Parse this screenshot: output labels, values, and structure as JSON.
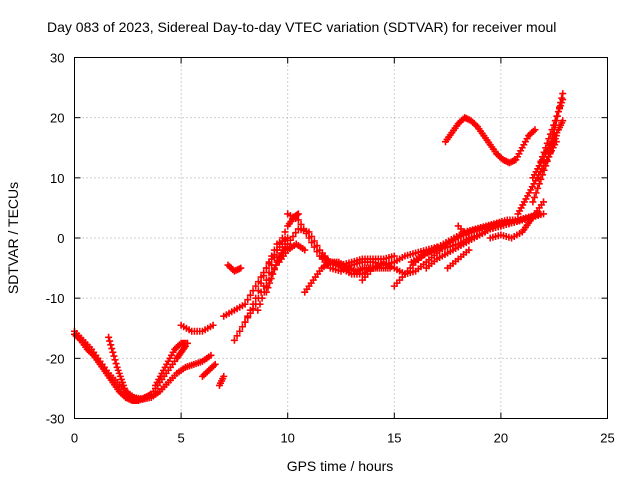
{
  "chart_data": {
    "type": "scatter",
    "title": "Day 083 of 2023, Sidereal Day-to-day VTEC variation (SDTVAR) for receiver moul",
    "xlabel": "GPS time / hours",
    "ylabel": "SDTVAR / TECUs",
    "xlim": [
      0,
      25
    ],
    "ylim": [
      -30,
      30
    ],
    "xticks": [
      0,
      5,
      10,
      15,
      20,
      25
    ],
    "yticks": [
      -30,
      -20,
      -10,
      0,
      10,
      20,
      30
    ],
    "xtick_labels": [
      "0",
      "5",
      "10",
      "15",
      "20",
      "25"
    ],
    "ytick_labels": [
      "-30",
      "-20",
      "-10",
      "0",
      "10",
      "20",
      "30"
    ],
    "grid": true,
    "marker": "+",
    "color": "#ff0000",
    "series": [
      {
        "name": "arc-1",
        "x": [
          0.0,
          0.3,
          0.6,
          0.9,
          1.2,
          1.5,
          1.8,
          2.1,
          2.4,
          2.7,
          3.0,
          3.3,
          3.6
        ],
        "y": [
          -16,
          -17,
          -18.5,
          -19.5,
          -21,
          -22.5,
          -24,
          -25.5,
          -26.5,
          -27,
          -27,
          -26.5,
          -26
        ]
      },
      {
        "name": "arc-2",
        "x": [
          0.0,
          0.4,
          0.8,
          1.2,
          1.6,
          2.0,
          2.4,
          2.8,
          3.2,
          3.6,
          4.0,
          4.4,
          4.8,
          5.2,
          5.6,
          6.0,
          6.4
        ],
        "y": [
          -15.5,
          -17,
          -18.5,
          -20.5,
          -22.5,
          -24,
          -25.5,
          -26.5,
          -26.8,
          -26.5,
          -25.5,
          -24,
          -22.5,
          -21.5,
          -21,
          -20.5,
          -19.5
        ]
      },
      {
        "name": "arc-3",
        "x": [
          1.6,
          1.8,
          2.0,
          2.2,
          2.4,
          2.6,
          2.8,
          3.0
        ],
        "y": [
          -16.5,
          -19,
          -21.5,
          -23.5,
          -25.5,
          -26.5,
          -27,
          -26.8
        ]
      },
      {
        "name": "arc-4",
        "x": [
          3.2,
          3.6,
          4.0,
          4.4,
          4.8,
          5.0,
          5.2
        ],
        "y": [
          -26.8,
          -26,
          -24,
          -22,
          -20,
          -19,
          -18
        ]
      },
      {
        "name": "arc-5",
        "x": [
          3.8,
          4.1,
          4.4,
          4.7,
          5.0,
          5.3
        ],
        "y": [
          -24.5,
          -22.5,
          -20.5,
          -18.5,
          -17.5,
          -17.5
        ]
      },
      {
        "name": "arc-6",
        "x": [
          5.0,
          5.5,
          6.0,
          6.5
        ],
        "y": [
          -14.5,
          -15.5,
          -15.5,
          -14.5
        ]
      },
      {
        "name": "arc-7",
        "x": [
          6.0,
          6.3,
          6.6
        ],
        "y": [
          -23,
          -22,
          -21
        ]
      },
      {
        "name": "arc-8",
        "x": [
          6.8,
          7.0
        ],
        "y": [
          -24.5,
          -23
        ]
      },
      {
        "name": "arc-9",
        "x": [
          7.2,
          7.5,
          7.8
        ],
        "y": [
          -4.5,
          -5.5,
          -5
        ]
      },
      {
        "name": "arc-10",
        "x": [
          7.0,
          7.5,
          8.0,
          8.5,
          9.0,
          9.5,
          10.0
        ],
        "y": [
          -13,
          -12,
          -11,
          -8,
          -5,
          -2,
          0
        ]
      },
      {
        "name": "arc-11",
        "x": [
          7.5,
          8.0,
          8.5,
          9.0,
          9.5,
          10.0
        ],
        "y": [
          -17,
          -14,
          -10,
          -5,
          -1,
          0
        ]
      },
      {
        "name": "arc-12",
        "x": [
          8.0,
          8.5,
          9.0,
          9.5,
          10.0,
          10.3,
          10.5
        ],
        "y": [
          -14,
          -11,
          -7,
          -2,
          2,
          3.5,
          4
        ]
      },
      {
        "name": "arc-13",
        "x": [
          8.6,
          9.0,
          9.5,
          10.0,
          10.5,
          11.0,
          11.5,
          12.0,
          12.5,
          13.0,
          13.5,
          14.0,
          14.5,
          15.0
        ],
        "y": [
          -12,
          -8,
          -4,
          -1,
          1.5,
          1,
          -2,
          -4,
          -4.5,
          -4,
          -3.5,
          -3.5,
          -3.5,
          -3
        ]
      },
      {
        "name": "arc-14",
        "x": [
          9.0,
          9.3,
          9.6,
          10.0
        ],
        "y": [
          -9,
          -6,
          -3,
          -1
        ]
      },
      {
        "name": "arc-15",
        "x": [
          9.6,
          10.0,
          10.4,
          10.8
        ],
        "y": [
          -4,
          -2,
          -1,
          -2
        ]
      },
      {
        "name": "arc-16",
        "x": [
          10.0,
          10.5,
          11.0,
          11.5,
          12.0,
          12.5,
          13.0,
          13.5,
          14.0,
          14.5,
          15.0,
          15.5,
          16.0,
          16.5,
          17.0
        ],
        "y": [
          4,
          3,
          0,
          -3,
          -5,
          -5.5,
          -4.5,
          -4,
          -4,
          -4.5,
          -4,
          -3,
          -2.5,
          -2,
          -1.5
        ]
      },
      {
        "name": "arc-17",
        "x": [
          10.8,
          11.2,
          11.6,
          12.0,
          12.4,
          12.8,
          13.2,
          13.6,
          14.0,
          14.4,
          14.8
        ],
        "y": [
          -9,
          -7,
          -5,
          -4,
          -4,
          -5,
          -5.5,
          -5,
          -5,
          -5,
          -5
        ]
      },
      {
        "name": "arc-18",
        "x": [
          11.6,
          12.0,
          12.5,
          13.0,
          13.5,
          14.0
        ],
        "y": [
          -3,
          -4,
          -5,
          -6,
          -6,
          -5
        ]
      },
      {
        "name": "arc-19",
        "x": [
          13.5,
          14.0,
          14.5,
          15.0,
          15.5,
          16.0,
          16.5,
          17.0,
          17.5,
          18.0,
          18.5,
          19.0,
          19.5,
          20.0,
          20.5,
          21.0
        ],
        "y": [
          -7,
          -5,
          -4,
          -5,
          -6,
          -5.5,
          -4,
          -2.5,
          -1,
          0,
          1,
          1.5,
          2,
          2.5,
          2.5,
          3
        ]
      },
      {
        "name": "arc-20",
        "x": [
          15.0,
          15.5,
          16.0,
          16.5,
          17.0,
          17.5,
          18.0,
          18.5,
          19.0,
          19.5,
          20.0,
          20.5,
          21.0,
          21.5
        ],
        "y": [
          -8,
          -6,
          -4,
          -2.5,
          -2,
          -1.5,
          -1,
          0,
          0.5,
          1.5,
          2,
          2.5,
          3,
          3.5
        ]
      },
      {
        "name": "arc-21",
        "x": [
          15.8,
          16.3,
          16.8,
          17.3,
          17.8,
          18.3,
          18.8,
          19.3,
          19.8,
          20.3,
          20.8,
          21.3,
          21.8
        ],
        "y": [
          -4,
          -3,
          -2,
          -1,
          0,
          1,
          1.5,
          2,
          2.5,
          3,
          3,
          3.5,
          4
        ]
      },
      {
        "name": "arc-22",
        "x": [
          16.5,
          17.0,
          17.5,
          18.0,
          18.5,
          19.0,
          19.5,
          20.0,
          20.5,
          21.0,
          21.5,
          22.0
        ],
        "y": [
          -5,
          -3.5,
          -2.5,
          -1.5,
          -0.5,
          0.5,
          1.5,
          2,
          2.5,
          3,
          3.5,
          4
        ]
      },
      {
        "name": "arc-23",
        "x": [
          17.5,
          18.0,
          18.5
        ],
        "y": [
          -5,
          -3.5,
          -2
        ]
      },
      {
        "name": "arc-24",
        "x": [
          18.0,
          18.5,
          19.0,
          19.5,
          20.0
        ],
        "y": [
          2,
          0,
          0.5,
          1.5,
          2.5
        ]
      },
      {
        "name": "arc-25",
        "x": [
          19.5,
          20.0,
          20.5,
          21.0,
          21.3,
          21.6,
          22.0
        ],
        "y": [
          0,
          0.5,
          0,
          1,
          2.5,
          4,
          6
        ]
      },
      {
        "name": "arc-26",
        "x": [
          17.4,
          17.7,
          18.0,
          18.3,
          18.6,
          18.9,
          19.2,
          19.5,
          19.8,
          20.1,
          20.4,
          20.7,
          21.0,
          21.3,
          21.6
        ],
        "y": [
          16,
          17.5,
          19,
          20,
          19.5,
          18.5,
          17,
          15.5,
          14,
          13,
          12.5,
          13,
          15,
          17,
          18
        ]
      },
      {
        "name": "arc-27",
        "x": [
          20.8,
          21.1,
          21.4,
          21.7,
          22.0,
          22.3,
          22.6
        ],
        "y": [
          4,
          6,
          8,
          10,
          12,
          14,
          16
        ]
      },
      {
        "name": "arc-28",
        "x": [
          21.5,
          21.8,
          22.1,
          22.4,
          22.7,
          22.9
        ],
        "y": [
          10,
          12,
          14,
          16,
          18,
          19.5
        ]
      },
      {
        "name": "arc-29",
        "x": [
          21.8,
          22.1,
          22.4,
          22.7,
          22.9
        ],
        "y": [
          12,
          15,
          18,
          21,
          24
        ]
      },
      {
        "name": "arc-30",
        "x": [
          22.3,
          22.5,
          22.7,
          22.9
        ],
        "y": [
          15,
          18,
          21,
          23
        ]
      },
      {
        "name": "arc-31",
        "x": [
          21.5,
          21.8,
          22.1,
          22.4,
          22.6
        ],
        "y": [
          6,
          9,
          12,
          15,
          17
        ]
      }
    ]
  }
}
